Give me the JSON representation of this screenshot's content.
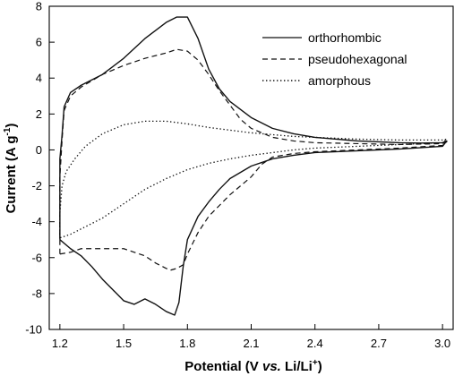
{
  "chart_data": {
    "type": "line",
    "xlabel": {
      "prefix": "Potential",
      "paren_open": " (V ",
      "vs": "vs.",
      "mid": " Li/Li",
      "sup": "+",
      "paren_close": ")"
    },
    "ylabel": {
      "prefix": "Current",
      "paren_open": " (A g",
      "sup": "-1",
      "paren_close": ")"
    },
    "xlim": [
      1.15,
      3.05
    ],
    "ylim": [
      -10,
      8
    ],
    "x_ticks": [
      1.2,
      1.5,
      1.8,
      2.1,
      2.4,
      2.7,
      3.0
    ],
    "x_tick_labels": [
      "1.2",
      "1.5",
      "1.8",
      "2.1",
      "2.4",
      "2.7",
      "3.0"
    ],
    "y_ticks": [
      -10,
      -8,
      -6,
      -4,
      -2,
      0,
      2,
      4,
      6,
      8
    ],
    "y_tick_labels": [
      "-10",
      "-8",
      "-6",
      "-4",
      "-2",
      "0",
      "2",
      "4",
      "6",
      "8"
    ],
    "grid": false,
    "legend_position": "top-right",
    "series": [
      {
        "name": "orthorhombic",
        "style": "solid",
        "points": [
          [
            1.2,
            -5.0
          ],
          [
            1.2,
            -0.5
          ],
          [
            1.21,
            0.8
          ],
          [
            1.22,
            2.4
          ],
          [
            1.25,
            3.2
          ],
          [
            1.3,
            3.6
          ],
          [
            1.4,
            4.2
          ],
          [
            1.5,
            5.1
          ],
          [
            1.6,
            6.2
          ],
          [
            1.7,
            7.1
          ],
          [
            1.75,
            7.4
          ],
          [
            1.8,
            7.4
          ],
          [
            1.85,
            6.2
          ],
          [
            1.9,
            4.5
          ],
          [
            1.95,
            3.4
          ],
          [
            2.0,
            2.7
          ],
          [
            2.1,
            1.8
          ],
          [
            2.2,
            1.2
          ],
          [
            2.3,
            0.9
          ],
          [
            2.4,
            0.7
          ],
          [
            2.5,
            0.6
          ],
          [
            2.6,
            0.5
          ],
          [
            2.7,
            0.45
          ],
          [
            2.8,
            0.4
          ],
          [
            2.9,
            0.38
          ],
          [
            3.0,
            0.4
          ],
          [
            3.02,
            0.5
          ],
          [
            3.0,
            0.2
          ],
          [
            2.8,
            0.05
          ],
          [
            2.6,
            -0.05
          ],
          [
            2.4,
            -0.15
          ],
          [
            2.3,
            -0.3
          ],
          [
            2.2,
            -0.5
          ],
          [
            2.1,
            -0.9
          ],
          [
            2.0,
            -1.6
          ],
          [
            1.95,
            -2.2
          ],
          [
            1.9,
            -2.9
          ],
          [
            1.85,
            -3.7
          ],
          [
            1.8,
            -5.0
          ],
          [
            1.78,
            -6.5
          ],
          [
            1.76,
            -8.5
          ],
          [
            1.74,
            -9.2
          ],
          [
            1.7,
            -9.0
          ],
          [
            1.65,
            -8.6
          ],
          [
            1.6,
            -8.3
          ],
          [
            1.55,
            -8.6
          ],
          [
            1.5,
            -8.4
          ],
          [
            1.45,
            -7.8
          ],
          [
            1.4,
            -7.2
          ],
          [
            1.35,
            -6.5
          ],
          [
            1.3,
            -5.9
          ],
          [
            1.25,
            -5.5
          ],
          [
            1.2,
            -5.0
          ]
        ]
      },
      {
        "name": "pseudohexagonal",
        "style": "dashed",
        "points": [
          [
            1.2,
            -5.8
          ],
          [
            1.2,
            -1.5
          ],
          [
            1.21,
            0.5
          ],
          [
            1.22,
            2.2
          ],
          [
            1.25,
            3.0
          ],
          [
            1.3,
            3.5
          ],
          [
            1.4,
            4.2
          ],
          [
            1.5,
            4.7
          ],
          [
            1.6,
            5.1
          ],
          [
            1.7,
            5.4
          ],
          [
            1.75,
            5.6
          ],
          [
            1.8,
            5.5
          ],
          [
            1.85,
            5.0
          ],
          [
            1.9,
            4.2
          ],
          [
            1.95,
            3.3
          ],
          [
            2.0,
            2.5
          ],
          [
            2.05,
            1.7
          ],
          [
            2.1,
            1.2
          ],
          [
            2.2,
            0.7
          ],
          [
            2.3,
            0.5
          ],
          [
            2.4,
            0.4
          ],
          [
            2.6,
            0.35
          ],
          [
            2.8,
            0.3
          ],
          [
            3.0,
            0.35
          ],
          [
            3.02,
            0.45
          ],
          [
            3.0,
            0.25
          ],
          [
            2.8,
            0.1
          ],
          [
            2.6,
            0.0
          ],
          [
            2.4,
            -0.1
          ],
          [
            2.3,
            -0.2
          ],
          [
            2.2,
            -0.4
          ],
          [
            2.15,
            -0.8
          ],
          [
            2.1,
            -1.5
          ],
          [
            2.05,
            -2.0
          ],
          [
            2.0,
            -2.5
          ],
          [
            1.95,
            -3.1
          ],
          [
            1.9,
            -3.7
          ],
          [
            1.85,
            -4.6
          ],
          [
            1.8,
            -5.8
          ],
          [
            1.78,
            -6.4
          ],
          [
            1.75,
            -6.6
          ],
          [
            1.72,
            -6.7
          ],
          [
            1.7,
            -6.6
          ],
          [
            1.65,
            -6.3
          ],
          [
            1.6,
            -5.9
          ],
          [
            1.55,
            -5.7
          ],
          [
            1.5,
            -5.5
          ],
          [
            1.4,
            -5.5
          ],
          [
            1.3,
            -5.5
          ],
          [
            1.25,
            -5.7
          ],
          [
            1.2,
            -5.8
          ]
        ]
      },
      {
        "name": "amorphous",
        "style": "dotted",
        "points": [
          [
            1.2,
            -4.9
          ],
          [
            1.2,
            -3.5
          ],
          [
            1.21,
            -2.0
          ],
          [
            1.23,
            -1.2
          ],
          [
            1.27,
            -0.5
          ],
          [
            1.32,
            0.2
          ],
          [
            1.4,
            0.9
          ],
          [
            1.5,
            1.4
          ],
          [
            1.6,
            1.6
          ],
          [
            1.7,
            1.6
          ],
          [
            1.8,
            1.45
          ],
          [
            1.9,
            1.25
          ],
          [
            2.0,
            1.1
          ],
          [
            2.1,
            0.95
          ],
          [
            2.2,
            0.85
          ],
          [
            2.3,
            0.75
          ],
          [
            2.4,
            0.7
          ],
          [
            2.6,
            0.6
          ],
          [
            2.8,
            0.55
          ],
          [
            3.0,
            0.55
          ],
          [
            3.02,
            0.6
          ],
          [
            3.0,
            0.4
          ],
          [
            2.8,
            0.3
          ],
          [
            2.6,
            0.2
          ],
          [
            2.4,
            0.1
          ],
          [
            2.3,
            0.0
          ],
          [
            2.2,
            -0.15
          ],
          [
            2.1,
            -0.3
          ],
          [
            2.0,
            -0.5
          ],
          [
            1.9,
            -0.75
          ],
          [
            1.8,
            -1.1
          ],
          [
            1.7,
            -1.6
          ],
          [
            1.6,
            -2.2
          ],
          [
            1.5,
            -3.0
          ],
          [
            1.4,
            -3.8
          ],
          [
            1.3,
            -4.4
          ],
          [
            1.25,
            -4.7
          ],
          [
            1.2,
            -4.9
          ]
        ]
      }
    ]
  }
}
